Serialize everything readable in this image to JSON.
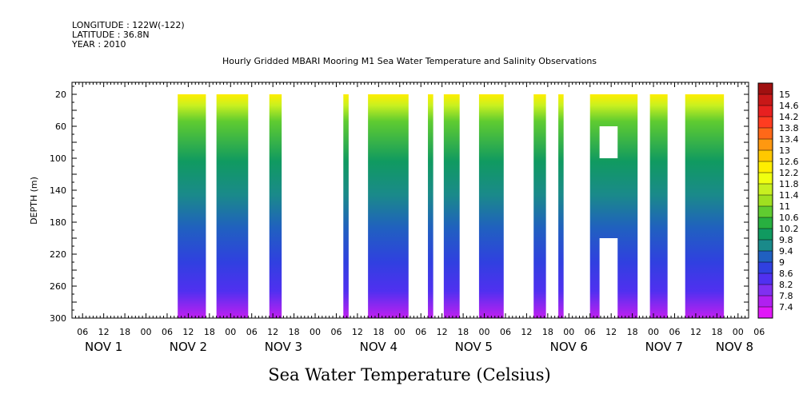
{
  "header": {
    "longitude": "LONGITUDE : 122W(-122)",
    "latitude": "LATITUDE : 36.8N",
    "year": "YEAR : 2010"
  },
  "chart_data": {
    "type": "heatmap",
    "title": "Hourly Gridded MBARI Mooring M1 Sea Water Temperature and Salinity Observations",
    "xlabel": "Sea Water Temperature (Celsius)",
    "ylabel": "DEPTH (m)",
    "x_unit": "hours since NOV 1 00:00 (2010)",
    "xlim": [
      3,
      195
    ],
    "ylim": [
      300,
      5
    ],
    "y_ticks": [
      20,
      60,
      100,
      140,
      180,
      220,
      260,
      300
    ],
    "x_hour_ticks": [
      "06",
      "12",
      "18",
      "00",
      "06",
      "12",
      "18",
      "00",
      "06",
      "12",
      "18",
      "00",
      "06",
      "12",
      "18",
      "00",
      "06",
      "12",
      "18",
      "00",
      "06",
      "12",
      "18",
      "00",
      "06",
      "12",
      "18",
      "00",
      "06",
      "12",
      "18",
      "00",
      "06"
    ],
    "x_day_labels": [
      {
        "label": "NOV  1",
        "hour": 12
      },
      {
        "label": "NOV  2",
        "hour": 36
      },
      {
        "label": "NOV  3",
        "hour": 63
      },
      {
        "label": "NOV  4",
        "hour": 90
      },
      {
        "label": "NOV  5",
        "hour": 117
      },
      {
        "label": "NOV  6",
        "hour": 144
      },
      {
        "label": "NOV  7",
        "hour": 171
      },
      {
        "label": "NOV  8",
        "hour": 191
      }
    ],
    "colorbar": {
      "levels": [
        "15",
        "14.6",
        "14.2",
        "13.8",
        "13.4",
        "13",
        "12.6",
        "12.2",
        "11.8",
        "11.4",
        "11",
        "10.6",
        "10.2",
        "9.8",
        "9.4",
        "9",
        "8.6",
        "8.2",
        "7.8",
        "7.4"
      ],
      "colors": [
        "#a01010",
        "#c81818",
        "#e82020",
        "#ff3c20",
        "#ff6818",
        "#ff9810",
        "#ffc800",
        "#ffee00",
        "#f0ff10",
        "#c8f020",
        "#a0e020",
        "#60cc30",
        "#28b040",
        "#109a60",
        "#1a8a8a",
        "#2060c0",
        "#3040e0",
        "#5030f0",
        "#8030f0",
        "#b020f0",
        "#e018f8"
      ]
    },
    "data_segments": [
      {
        "start": 33,
        "end": 41
      },
      {
        "start": 44,
        "end": 53
      },
      {
        "start": 59,
        "end": 62.5
      },
      {
        "start": 80,
        "end": 81.5
      },
      {
        "start": 87,
        "end": 98.5
      },
      {
        "start": 104,
        "end": 105.5
      },
      {
        "start": 108.5,
        "end": 113
      },
      {
        "start": 118.5,
        "end": 125.5
      },
      {
        "start": 134,
        "end": 137.5
      },
      {
        "start": 141,
        "end": 142.5
      },
      {
        "start": 150,
        "end": 163.5,
        "gaps": [
          {
            "depth_top": 60,
            "depth_bottom": 100
          },
          {
            "depth_top": 200,
            "depth_bottom": 300
          }
        ]
      },
      {
        "start": 167,
        "end": 172
      },
      {
        "start": 177,
        "end": 188
      }
    ],
    "temperature_profile": [
      {
        "depth": 20,
        "value": 12.6
      },
      {
        "depth": 40,
        "value": 11.0
      },
      {
        "depth": 60,
        "value": 10.4
      },
      {
        "depth": 100,
        "value": 9.8
      },
      {
        "depth": 140,
        "value": 9.4
      },
      {
        "depth": 180,
        "value": 9.0
      },
      {
        "depth": 220,
        "value": 8.5
      },
      {
        "depth": 260,
        "value": 8.0
      },
      {
        "depth": 300,
        "value": 7.4
      }
    ]
  }
}
